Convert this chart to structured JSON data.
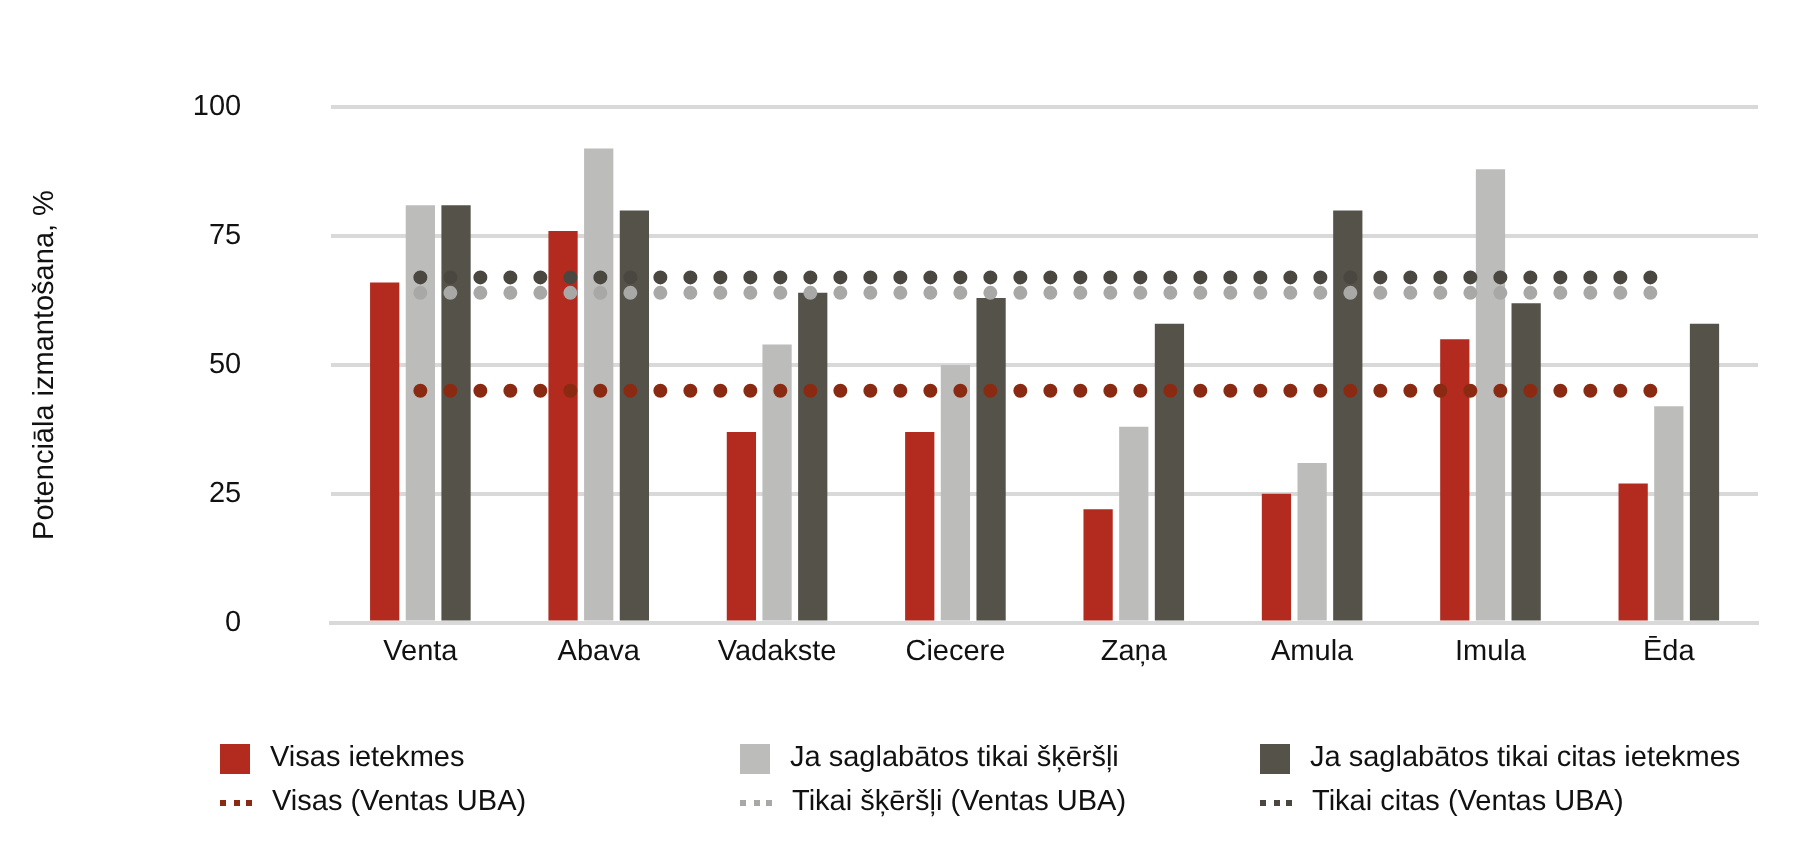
{
  "chart_data": {
    "type": "bar",
    "ylabel": "Potenciāla izmantošana, %",
    "categories": [
      "Venta",
      "Abava",
      "Vadakste",
      "Ciecere",
      "Zaņa",
      "Amula",
      "Imula",
      "Ēda"
    ],
    "series": [
      {
        "name": "Visas ietekmes",
        "color": "#b32a1f",
        "values": [
          66,
          76,
          37,
          37,
          22,
          25,
          55,
          27
        ]
      },
      {
        "name": "Ja saglabātos tikai šķēršļi",
        "color": "#bcbcbb",
        "values": [
          81,
          92,
          54,
          50,
          38,
          31,
          88,
          42
        ]
      },
      {
        "name": "Ja saglabātos tikai citas ietekmes",
        "color": "#55524a",
        "values": [
          81,
          80,
          64,
          63,
          58,
          80,
          62,
          58
        ]
      },
      {
        "name": "Visas (Ventas UBA)",
        "type": "line",
        "line_style": "dotted",
        "color": "#8b2a12",
        "values": [
          45,
          45,
          45,
          45,
          45,
          45,
          45,
          45
        ]
      },
      {
        "name": "Tikai šķēršļi (Ventas UBA)",
        "type": "line",
        "line_style": "dotted",
        "color": "#a8a8a6",
        "values": [
          64,
          64,
          64,
          64,
          64,
          64,
          64,
          64
        ]
      },
      {
        "name": "Tikai citas (Ventas UBA)",
        "type": "line",
        "line_style": "dotted",
        "color": "#4a4740",
        "values": [
          67,
          67,
          67,
          67,
          67,
          67,
          67,
          67
        ]
      }
    ],
    "ylim": [
      0,
      100
    ],
    "yticks": [
      0,
      25,
      50,
      75,
      100
    ],
    "grid": "y",
    "legend": "bottom",
    "marker": "none"
  }
}
